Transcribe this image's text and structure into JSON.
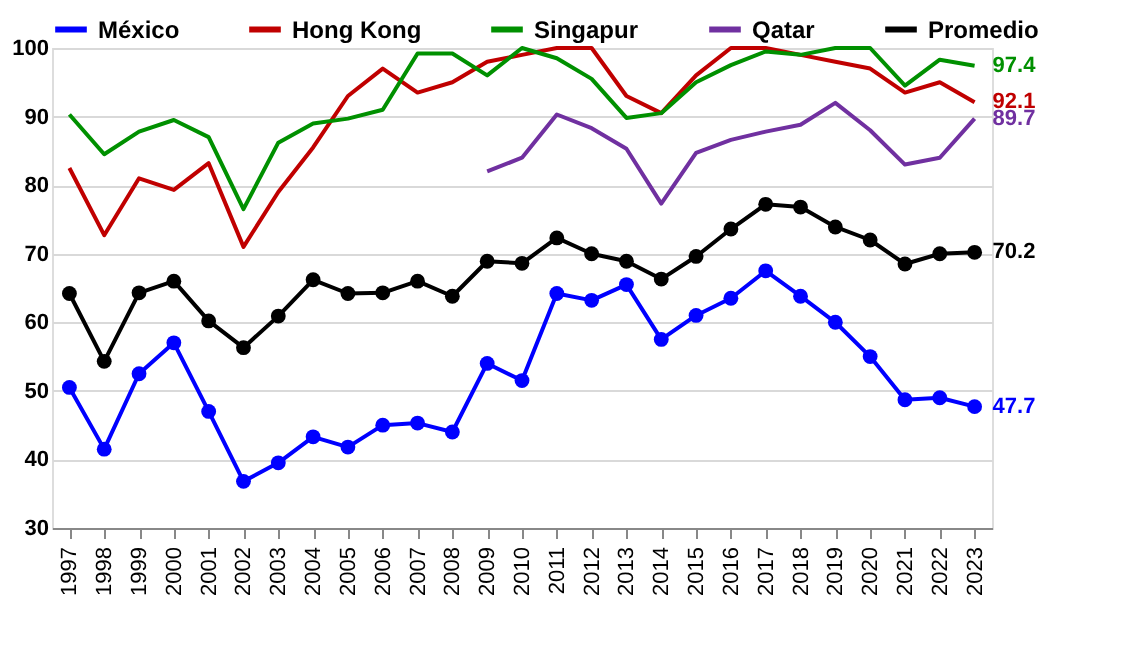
{
  "chart_data": {
    "type": "line",
    "categories": [
      "1997",
      "1998",
      "1999",
      "2000",
      "2001",
      "2002",
      "2003",
      "2004",
      "2005",
      "2006",
      "2007",
      "2008",
      "2009",
      "2010",
      "2011",
      "2012",
      "2013",
      "2014",
      "2015",
      "2016",
      "2017",
      "2018",
      "2019",
      "2020",
      "2021",
      "2022",
      "2023"
    ],
    "series": [
      {
        "name": "México",
        "color": "#0000ff",
        "marker": "circle",
        "values": [
          50.5,
          41.5,
          52.5,
          57,
          47,
          36.8,
          39.5,
          43.3,
          41.8,
          45,
          45.3,
          44,
          54,
          51.5,
          64.2,
          63.2,
          65.5,
          57.5,
          61,
          63.5,
          67.5,
          63.8,
          60,
          55,
          48.7,
          49,
          47.7
        ]
      },
      {
        "name": "Hong Kong",
        "color": "#c00000",
        "marker": "none",
        "values": [
          82.5,
          72.7,
          81,
          79.3,
          83.2,
          71,
          79,
          85.5,
          93,
          97,
          93.5,
          95,
          98,
          99,
          100,
          100,
          93,
          90.5,
          96,
          100,
          100,
          99,
          98,
          97,
          93.5,
          95,
          92.1
        ]
      },
      {
        "name": "Singapur",
        "color": "#009000",
        "marker": "none",
        "values": [
          90.3,
          84.5,
          87.8,
          89.5,
          87,
          76.5,
          86.2,
          89,
          89.7,
          91,
          99.2,
          99.2,
          96,
          100,
          98.5,
          95.5,
          89.8,
          90.5,
          95,
          97.5,
          99.5,
          99,
          100,
          100,
          94.5,
          98.3,
          97.4
        ]
      },
      {
        "name": "Qatar",
        "color": "#7030a0",
        "marker": "none",
        "values": [
          null,
          null,
          null,
          null,
          null,
          null,
          null,
          null,
          null,
          null,
          null,
          null,
          82,
          84,
          90.3,
          88.3,
          85.3,
          77.3,
          84.7,
          86.6,
          87.8,
          88.8,
          92,
          88,
          83,
          84,
          89.7
        ]
      },
      {
        "name": "Promedio",
        "color": "#000000",
        "marker": "circle",
        "values": [
          64.2,
          54.3,
          64.3,
          66,
          60.2,
          56.3,
          60.9,
          66.2,
          64.2,
          64.3,
          66,
          63.8,
          68.9,
          68.6,
          72.3,
          70,
          68.9,
          66.3,
          69.6,
          73.6,
          77.2,
          76.8,
          73.9,
          72,
          68.5,
          70,
          70.2
        ]
      }
    ],
    "annotations": [
      {
        "text": "97.4",
        "x": "2023",
        "y": 97.4
      },
      {
        "text": "92.1",
        "x": "2023",
        "y": 92.1
      },
      {
        "text": "89.7",
        "x": "2023",
        "y": 89.7
      },
      {
        "text": "70.2",
        "x": "2023",
        "y": 70.2
      },
      {
        "text": "47.7",
        "x": "2023",
        "y": 47.7
      }
    ],
    "ylim": [
      30,
      100
    ],
    "yticks": [
      30,
      40,
      50,
      60,
      70,
      80,
      90,
      100
    ],
    "grid": "y",
    "legend": "top",
    "line_style": "solid"
  }
}
